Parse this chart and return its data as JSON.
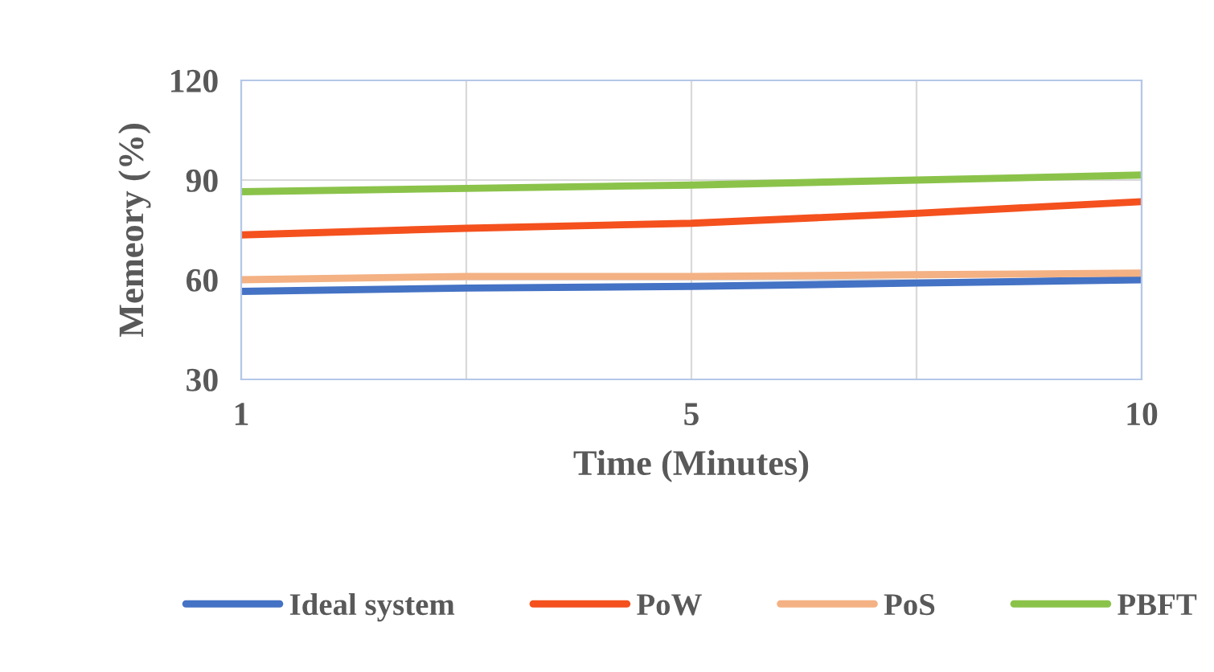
{
  "chart_data": {
    "type": "line",
    "xlabel": "Time (Minutes)",
    "ylabel": "Memeory (%)",
    "categories": [
      "1",
      null,
      "5",
      null,
      "10"
    ],
    "series": [
      {
        "name": "Ideal system",
        "color": "#4472c4",
        "values": [
          56.5,
          57.5,
          58,
          59,
          60
        ]
      },
      {
        "name": "PoW",
        "color": "#f4511e",
        "values": [
          73.5,
          75.5,
          77,
          80,
          83.5
        ]
      },
      {
        "name": "PoS",
        "color": "#f4b183",
        "values": [
          60,
          61,
          61,
          61.5,
          62
        ]
      },
      {
        "name": "PBFT",
        "color": "#8bc34a",
        "values": [
          86.5,
          87.5,
          88.5,
          90,
          91.5
        ]
      }
    ],
    "ylim": [
      30,
      120
    ],
    "yticks": [
      30,
      60,
      90,
      120
    ],
    "grid": true,
    "legend": "bottom",
    "marker": "none",
    "line_style": "solid"
  }
}
